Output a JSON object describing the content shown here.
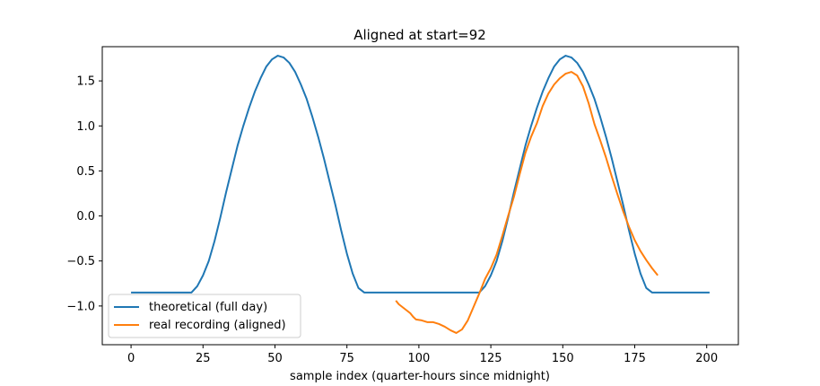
{
  "chart_data": {
    "type": "line",
    "title": "Aligned at start=92",
    "xlabel": "sample index (quarter-hours since midnight)",
    "ylabel": "",
    "xlim": [
      -10,
      211
    ],
    "ylim": [
      -1.43,
      1.88
    ],
    "xticks": [
      0,
      25,
      50,
      75,
      100,
      125,
      150,
      175,
      200
    ],
    "xtick_labels": [
      "0",
      "25",
      "50",
      "75",
      "100",
      "125",
      "150",
      "175",
      "200"
    ],
    "yticks": [
      -1.0,
      -0.5,
      0.0,
      0.5,
      1.0,
      1.5
    ],
    "ytick_labels": [
      "−1.0",
      "−0.5",
      "0.0",
      "0.5",
      "1.0",
      "1.5"
    ],
    "grid": false,
    "legend": "lower-left",
    "series": [
      {
        "name": "theoretical (full day)",
        "color": "#1f77b4",
        "x": [
          0,
          21,
          23,
          25,
          27,
          29,
          31,
          33,
          35,
          37,
          39,
          41,
          43,
          45,
          47,
          49,
          51,
          53,
          55,
          57,
          59,
          61,
          63,
          65,
          67,
          69,
          71,
          73,
          75,
          77,
          79,
          81,
          121,
          123,
          125,
          127,
          129,
          131,
          133,
          135,
          137,
          139,
          141,
          143,
          145,
          147,
          149,
          151,
          153,
          155,
          157,
          159,
          161,
          163,
          165,
          167,
          169,
          171,
          173,
          175,
          177,
          179,
          181,
          183,
          201
        ],
        "y": [
          -0.85,
          -0.85,
          -0.78,
          -0.66,
          -0.5,
          -0.28,
          -0.02,
          0.26,
          0.52,
          0.78,
          1.0,
          1.2,
          1.38,
          1.53,
          1.66,
          1.74,
          1.78,
          1.76,
          1.7,
          1.6,
          1.46,
          1.3,
          1.1,
          0.88,
          0.64,
          0.38,
          0.12,
          -0.16,
          -0.42,
          -0.64,
          -0.8,
          -0.85,
          -0.85,
          -0.78,
          -0.66,
          -0.5,
          -0.28,
          -0.02,
          0.26,
          0.52,
          0.78,
          1.0,
          1.2,
          1.38,
          1.53,
          1.66,
          1.74,
          1.78,
          1.76,
          1.7,
          1.6,
          1.46,
          1.3,
          1.1,
          0.88,
          0.64,
          0.38,
          0.12,
          -0.16,
          -0.42,
          -0.64,
          -0.8,
          -0.85,
          -0.85,
          -0.85
        ]
      },
      {
        "name": "real recording (aligned)",
        "color": "#ff7f0e",
        "x": [
          92,
          93,
          95,
          97,
          98,
          99,
          101,
          103,
          105,
          107,
          109,
          111,
          113,
          115,
          117,
          119,
          121,
          123,
          125,
          127,
          129,
          131,
          133,
          135,
          137,
          139,
          141,
          143,
          145,
          147,
          149,
          151,
          153,
          155,
          157,
          159,
          161,
          163,
          165,
          167,
          169,
          171,
          173,
          175,
          177,
          179,
          181,
          183
        ],
        "y": [
          -0.94,
          -0.98,
          -1.03,
          -1.08,
          -1.12,
          -1.15,
          -1.16,
          -1.18,
          -1.18,
          -1.2,
          -1.23,
          -1.27,
          -1.3,
          -1.26,
          -1.16,
          -1.01,
          -0.86,
          -0.7,
          -0.58,
          -0.43,
          -0.22,
          0.0,
          0.21,
          0.46,
          0.7,
          0.88,
          1.03,
          1.22,
          1.36,
          1.46,
          1.53,
          1.58,
          1.6,
          1.56,
          1.44,
          1.25,
          1.02,
          0.84,
          0.65,
          0.44,
          0.24,
          0.05,
          -0.12,
          -0.27,
          -0.39,
          -0.49,
          -0.58,
          -0.66
        ]
      }
    ]
  }
}
